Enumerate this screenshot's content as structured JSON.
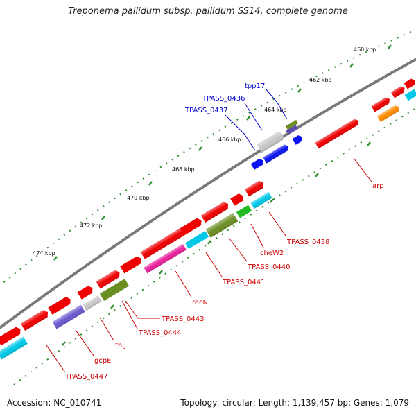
{
  "title": "Treponema pallidum subsp. pallidum SS14, complete genome",
  "footer": {
    "accession": "Accession: NC_010741",
    "stats": "Topology: circular; Length: 1,139,457 bp; Genes: 1,079"
  },
  "ticks": [
    "460 kbp",
    "462 kbp",
    "464 kbp",
    "466 kbp",
    "468 kbp",
    "470 kbp",
    "472 kbp",
    "474 kbp"
  ],
  "labels": [
    {
      "id": "tpp17",
      "text": "tpp17",
      "color": "#0000cc"
    },
    {
      "id": "TPASS_0436",
      "text": "TPASS_0436",
      "color": "#0000cc"
    },
    {
      "id": "TPASS_0437",
      "text": "TPASS_0437",
      "color": "#0000cc"
    },
    {
      "id": "arp",
      "text": "arp",
      "color": "#cc0000"
    },
    {
      "id": "TPASS_0438",
      "text": "TPASS_0438",
      "color": "#cc0000"
    },
    {
      "id": "cheW2",
      "text": "cheW2",
      "color": "#cc0000"
    },
    {
      "id": "TPASS_0440",
      "text": "TPASS_0440",
      "color": "#cc0000"
    },
    {
      "id": "TPASS_0441",
      "text": "TPASS_0441",
      "color": "#cc0000"
    },
    {
      "id": "recN",
      "text": "recN",
      "color": "#cc0000"
    },
    {
      "id": "TPASS_0443",
      "text": "TPASS_0443",
      "color": "#cc0000"
    },
    {
      "id": "TPASS_0444",
      "text": "TPASS_0444",
      "color": "#cc0000"
    },
    {
      "id": "thiJ",
      "text": "thiJ",
      "color": "#cc0000"
    },
    {
      "id": "gcpE",
      "text": "gcpE",
      "color": "#cc0000"
    },
    {
      "id": "TPASS_0447",
      "text": "TPASS_0447",
      "color": "#cc0000"
    }
  ]
}
